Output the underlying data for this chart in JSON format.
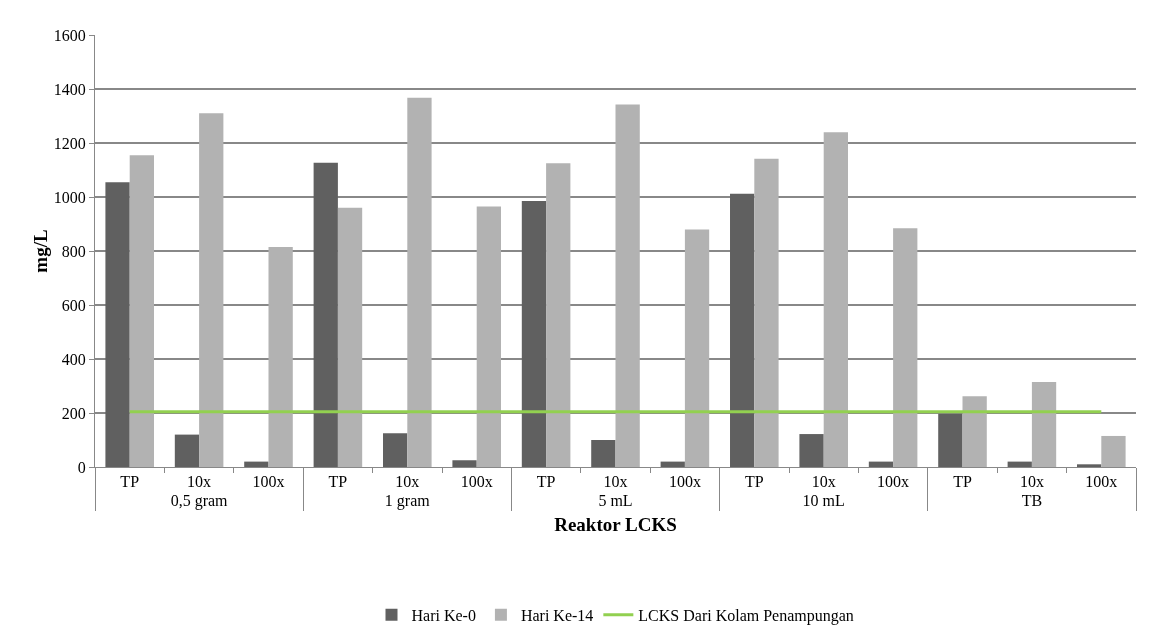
{
  "chart_data": {
    "type": "bar",
    "xlabel": "Reaktor LCKS",
    "ylabel": "mg/L",
    "categories": [
      "TP",
      "10x",
      "100x",
      "TP",
      "10x",
      "100x",
      "TP",
      "10x",
      "100x",
      "TP",
      "10x",
      "100x",
      "TP",
      "10x",
      "100x"
    ],
    "annotations": [
      "0,5 gram",
      "1 gram",
      "5 mL",
      "10 mL",
      "TB"
    ],
    "series": [
      {
        "name": "Hari Ke-0",
        "color": "#606060",
        "values": [
          1055,
          120,
          20,
          1127,
          125,
          25,
          985,
          100,
          20,
          1012,
          122,
          20,
          197,
          20,
          10
        ]
      },
      {
        "name": "Hari Ke-14",
        "color": "#b2b2b2",
        "values": [
          1155,
          1310,
          815,
          960,
          1368,
          965,
          1125,
          1343,
          880,
          1142,
          1240,
          884,
          262,
          315,
          115
        ]
      },
      {
        "name": "LCKS Dari Kolam Penampungan",
        "type": "line",
        "color": "#92d050",
        "marker": "none",
        "values": [
          205,
          205,
          205,
          205,
          205,
          205,
          205,
          205,
          205,
          205,
          205,
          205,
          205,
          205,
          205
        ]
      }
    ],
    "ylim": [
      0,
      1600
    ],
    "yticks": [
      0,
      200,
      400,
      600,
      800,
      1000,
      1200,
      1400,
      1600
    ],
    "grid": "y",
    "legend": "bottom"
  }
}
